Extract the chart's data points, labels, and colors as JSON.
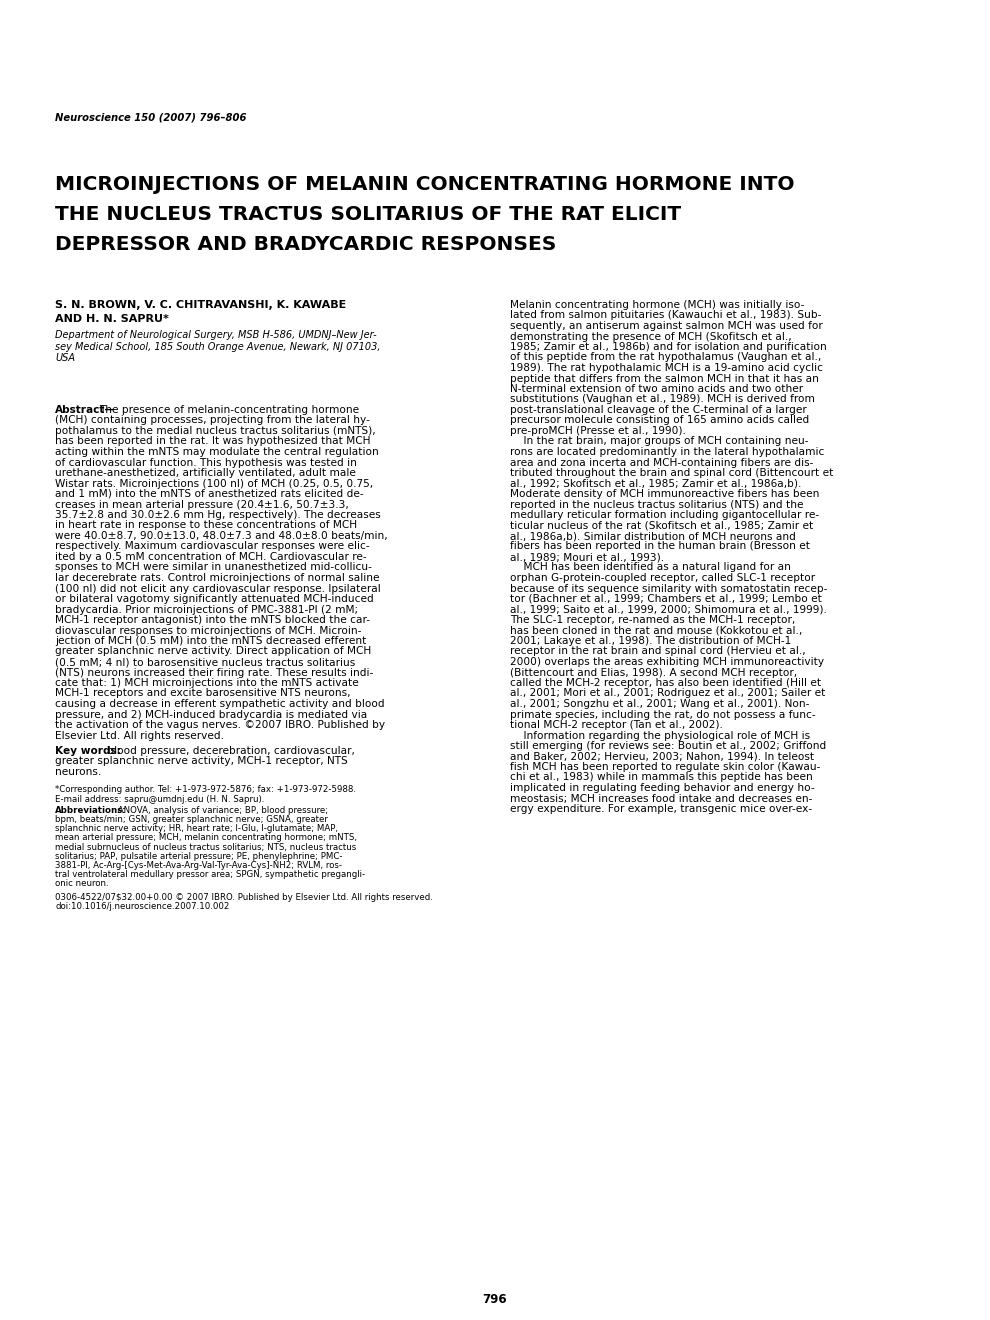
{
  "journal_header": "Neuroscience 150 (2007) 796–806",
  "title_line1": "MICROINJECTIONS OF MELANIN CONCENTRATING HORMONE INTO",
  "title_line2": "THE NUCLEUS TRACTUS SOLITARIUS OF THE RAT ELICIT",
  "title_line3": "DEPRESSOR AND BRADYCARDIC RESPONSES",
  "authors": "S. N. BROWN, V. C. CHITRAVANSHI, K. KAWABE\nAND H. N. SAPRU*",
  "affiliation": "Department of Neurological Surgery, MSB H-586, UMDNJ–New Jer-\nsey Medical School, 185 South Orange Avenue, Newark, NJ 07103,\nUSA",
  "abstract_text": "Abstract—The presence of melanin-concentrating hormone\n(MCH) containing processes, projecting from the lateral hy-\npothalamus to the medial nucleus tractus solitarius (mNTS),\nhas been reported in the rat. It was hypothesized that MCH\nacting within the mNTS may modulate the central regulation\nof cardiovascular function. This hypothesis was tested in\nurethane-anesthetized, artificially ventilated, adult male\nWistar rats. Microinjections (100 nl) of MCH (0.25, 0.5, 0.75,\nand 1 mM) into the mNTS of anesthetized rats elicited de-\ncreases in mean arterial pressure (20.4±1.6, 50.7±3.3,\n35.7±2.8 and 30.0±2.6 mm Hg, respectively). The decreases\nin heart rate in response to these concentrations of MCH\nwere 40.0±8.7, 90.0±13.0, 48.0±7.3 and 48.0±8.0 beats/min,\nrespectively. Maximum cardiovascular responses were elic-\nited by a 0.5 mM concentration of MCH. Cardiovascular re-\nsponses to MCH were similar in unanesthetized mid-collicu-\nlar decerebrate rats. Control microinjections of normal saline\n(100 nl) did not elicit any cardiovascular response. Ipsilateral\nor bilateral vagotomy significantly attenuated MCH-induced\nbradycardia. Prior microinjections of PMC-3881-PI (2 mM;\nMCH-1 receptor antagonist) into the mNTS blocked the car-\ndiovascular responses to microinjections of MCH. Microin-\njection of MCH (0.5 mM) into the mNTS decreased efferent\ngreater splanchnic nerve activity. Direct application of MCH\n(0.5 mM; 4 nl) to barosensitive nucleus tractus solitarius\n(NTS) neurons increased their firing rate. These results indi-\ncate that: 1) MCH microinjections into the mNTS activate\nMCH-1 receptors and excite barosensitive NTS neurons,\ncausing a decrease in efferent sympathetic activity and blood\npressure, and 2) MCH-induced bradycardia is mediated via\nthe activation of the vagus nerves. ©2007 IBRO. Published by\nElsevier Ltd. All rights reserved.",
  "keywords_label": "Key words:",
  "keywords_text": " blood pressure, decerebration, cardiovascular,\ngreater splanchnic nerve activity, MCH-1 receptor, NTS\nneurons.",
  "footnote_corresponding": "*Corresponding author. Tel: +1-973-972-5876; fax: +1-973-972-5988.\nE-mail address: sapru@umdnj.edu (H. N. Sapru).",
  "footnote_abbrev_label": "Abbreviations:",
  "footnote_abbrev_text": " ANOVA, analysis of variance; BP, blood pressure;\nbpm, beats/min; GSN, greater splanchnic nerve; GSNA, greater\nsplanchnic nerve activity; HR, heart rate; l-Glu, l-glutamate; MAP,\nmean arterial pressure; MCH, melanin concentrating hormone; mNTS,\nmedial subrnucleus of nucleus tractus solitarius; NTS, nucleus tractus\nsolitarius; PAP, pulsatile arterial pressure; PE, phenylephrine; PMC-\n3881-PI, Ac-Arg-[Cys-Met-Ava-Arg-Val-Tyr-Ava-Cys]-NH2; RVLM, ros-\ntral ventrolateral medullary pressor area; SPGN, sympathetic pregangli-\nonic neuron.",
  "copyright_text": "0306-4522/07$32.00+0.00 © 2007 IBRO. Published by Elsevier Ltd. All rights reserved.\ndoi:10.1016/j.neuroscience.2007.10.002",
  "page_number": "796",
  "right_col_text": "Melanin concentrating hormone (MCH) was initially iso-\nlated from salmon pituitaries (Kawauchi et al., 1983). Sub-\nsequently, an antiserum against salmon MCH was used for\ndemonstrating the presence of MCH (Skofitsch et al.,\n1985; Zamir et al., 1986b) and for isolation and purification\nof this peptide from the rat hypothalamus (Vaughan et al.,\n1989). The rat hypothalamic MCH is a 19-amino acid cyclic\npeptide that differs from the salmon MCH in that it has an\nN-terminal extension of two amino acids and two other\nsubstitutions (Vaughan et al., 1989). MCH is derived from\npost-translational cleavage of the C-terminal of a larger\nprecursor molecule consisting of 165 amino acids called\npre-proMCH (Presse et al., 1990).\n    In the rat brain, major groups of MCH containing neu-\nrons are located predominantly in the lateral hypothalamic\narea and zona incerta and MCH-containing fibers are dis-\ntributed throughout the brain and spinal cord (Bittencourt et\nal., 1992; Skofitsch et al., 1985; Zamir et al., 1986a,b).\nModerate density of MCH immunoreactive fibers has been\nreported in the nucleus tractus solitarius (NTS) and the\nmedullary reticular formation including gigantocellular re-\nticular nucleus of the rat (Skofitsch et al., 1985; Zamir et\nal., 1986a,b). Similar distribution of MCH neurons and\nfibers has been reported in the human brain (Bresson et\nal., 1989; Mouri et al., 1993).\n    MCH has been identified as a natural ligand for an\norphan G-protein-coupled receptor, called SLC-1 receptor\nbecause of its sequence similarity with somatostatin recep-\ntor (Bachner et al., 1999; Chambers et al., 1999; Lembo et\nal., 1999; Saito et al., 1999, 2000; Shimomura et al., 1999).\nThe SLC-1 receptor, re-named as the MCH-1 receptor,\nhas been cloned in the rat and mouse (Kokkotou et al.,\n2001; Lakaye et al., 1998). The distribution of MCH-1\nreceptor in the rat brain and spinal cord (Hervieu et al.,\n2000) overlaps the areas exhibiting MCH immunoreactivity\n(Bittencourt and Elias, 1998). A second MCH receptor,\ncalled the MCH-2 receptor, has also been identified (Hill et\nal., 2001; Mori et al., 2001; Rodriguez et al., 2001; Sailer et\nal., 2001; Songzhu et al., 2001; Wang et al., 2001). Non-\nprimate species, including the rat, do not possess a func-\ntional MCH-2 receptor (Tan et al., 2002).\n    Information regarding the physiological role of MCH is\nstill emerging (for reviews see: Boutin et al., 2002; Griffond\nand Baker, 2002; Hervieu, 2003; Nahon, 1994). In teleost\nfish MCH has been reported to regulate skin color (Kawau-\nchi et al., 1983) while in mammals this peptide has been\nimplicated in regulating feeding behavior and energy ho-\nmeostasis; MCH increases food intake and decreases en-\nergy expenditure. For example, transgenic mice over-ex-",
  "bg_color": "#ffffff",
  "text_color": "#000000",
  "link_color": "#0000ee",
  "title_fontsize": 14.5,
  "body_fontsize": 7.6,
  "header_fontsize": 7.2,
  "author_fontsize": 8.0,
  "affil_fontsize": 7.0,
  "footnote_fontsize": 6.2,
  "page_num_fontsize": 8.5
}
